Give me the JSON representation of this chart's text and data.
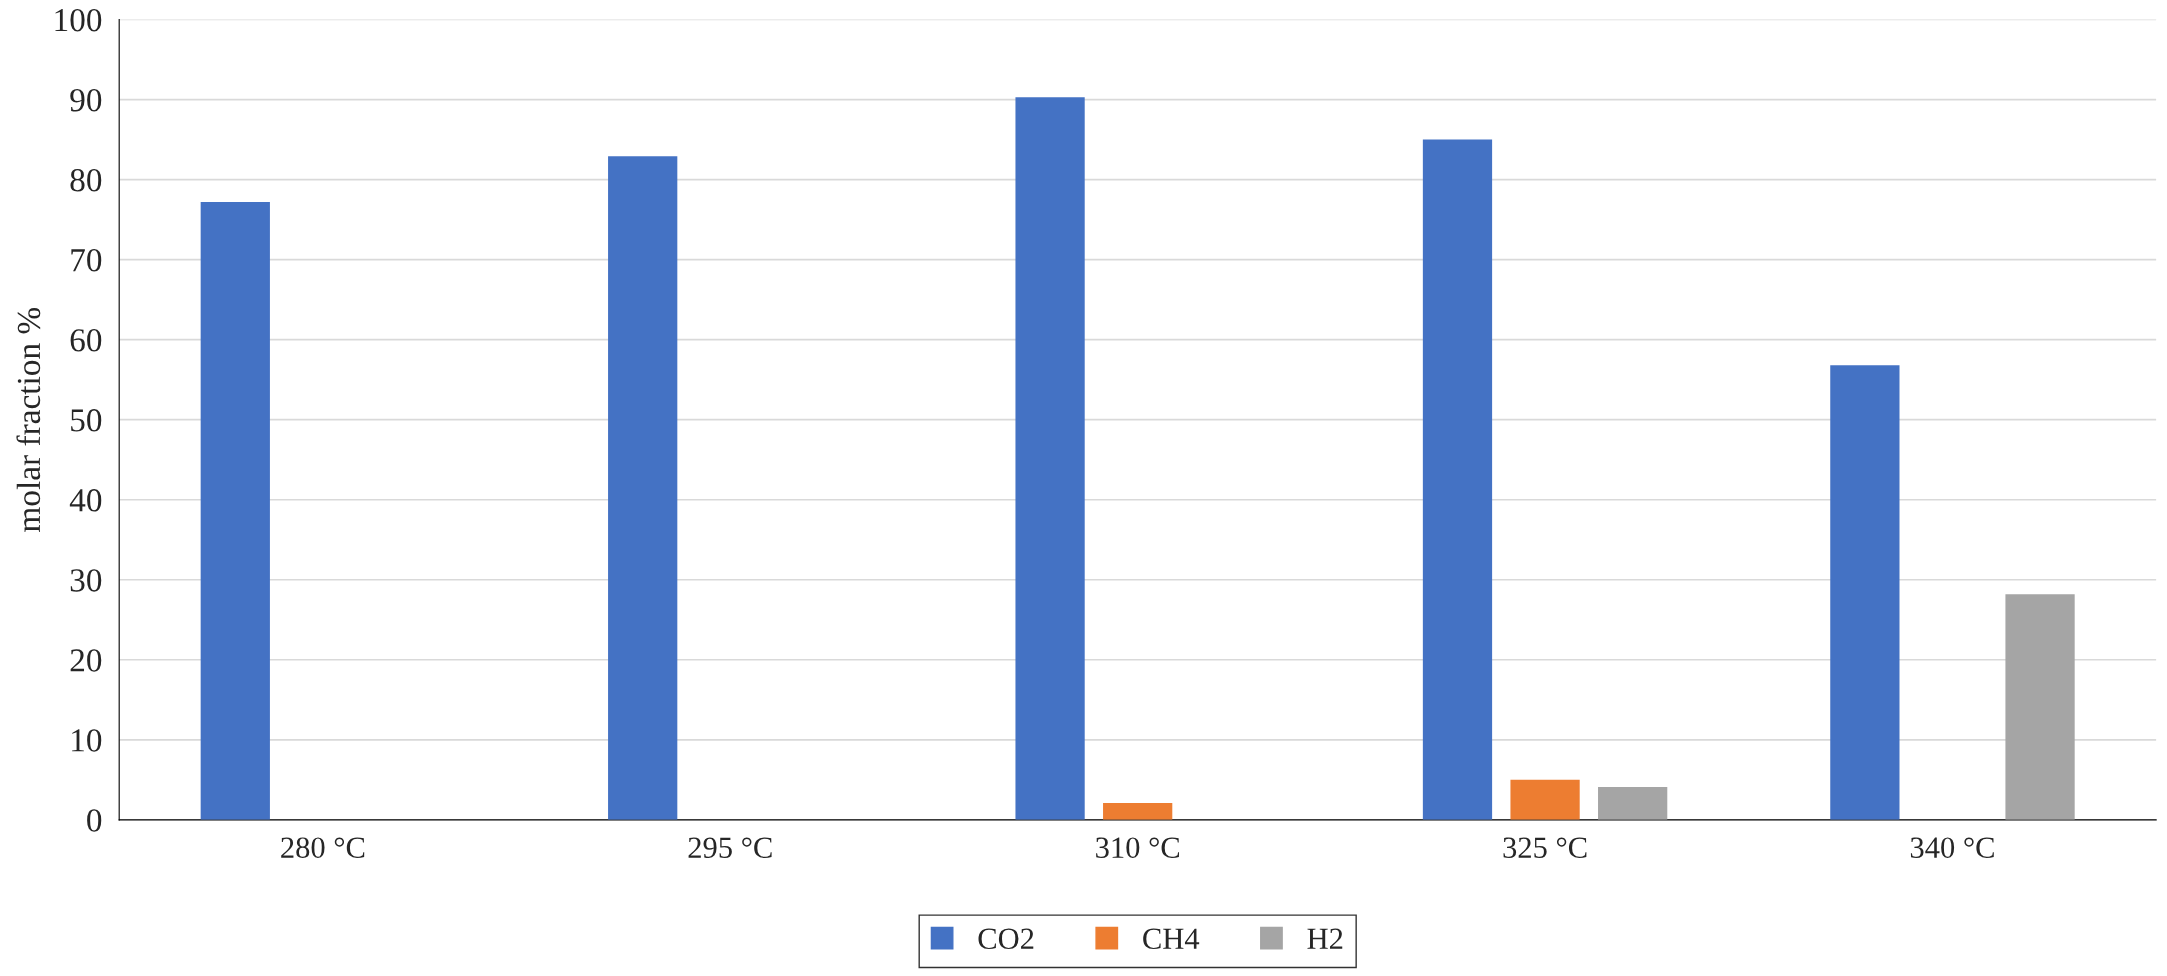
{
  "chart_data": {
    "type": "bar",
    "ylabel": "molar fraction %",
    "categories": [
      "280 °C",
      "295 °C",
      "310 °C",
      "325 °C",
      "340 °C"
    ],
    "series": [
      {
        "name": "CO2",
        "color": "#4472c4",
        "values": [
          77.2,
          82.9,
          90.3,
          85.0,
          56.8
        ]
      },
      {
        "name": "CH4",
        "color": "#ed7d31",
        "values": [
          0,
          0,
          2.1,
          5.0,
          0
        ]
      },
      {
        "name": "H2",
        "color": "#a5a5a5",
        "values": [
          0,
          0,
          0,
          4.1,
          28.2
        ]
      }
    ],
    "ylim": [
      0,
      100
    ],
    "yticks": [
      0,
      10,
      20,
      30,
      40,
      50,
      60,
      70,
      80,
      90,
      100
    ],
    "grid": "y",
    "legend": "bottom"
  }
}
